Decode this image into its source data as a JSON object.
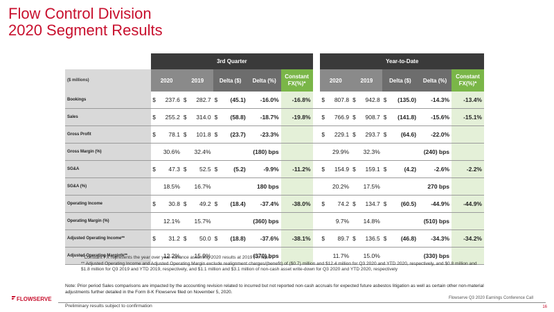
{
  "title": {
    "line1": "Flow Control Division",
    "line2": "2020 Segment Results"
  },
  "table": {
    "group_headers": {
      "q3": "3rd Quarter",
      "ytd": "Year-to-Date"
    },
    "units_label": "($ millions)",
    "col_headers": {
      "y2020": "2020",
      "y2019": "2019",
      "delta_usd": "Delta ($)",
      "delta_pct": "Delta (%)",
      "constant_fx": "Constant FX(%)*"
    },
    "rows": [
      {
        "label": "Bookings",
        "q3": [
          "$",
          "237.6",
          "$",
          "282.7",
          "$",
          "(45.1)",
          "-16.0%",
          "-16.8%"
        ],
        "ytd": [
          "$",
          "807.8",
          "$",
          "942.8",
          "$",
          "(135.0)",
          "-14.3%",
          "-13.4%"
        ]
      },
      {
        "label": "Sales",
        "q3": [
          "$",
          "255.2",
          "$",
          "314.0",
          "$",
          "(58.8)",
          "-18.7%",
          "-19.8%"
        ],
        "ytd": [
          "$",
          "766.9",
          "$",
          "908.7",
          "$",
          "(141.8)",
          "-15.6%",
          "-15.1%"
        ]
      },
      {
        "label": "Gross Profit",
        "q3": [
          "$",
          "78.1",
          "$",
          "101.8",
          "$",
          "(23.7)",
          "-23.3%",
          ""
        ],
        "ytd": [
          "$",
          "229.1",
          "$",
          "293.7",
          "$",
          "(64.6)",
          "-22.0%",
          ""
        ]
      },
      {
        "label": "Gross Margin (%)",
        "q3": [
          "",
          "30.6%",
          "",
          "32.4%",
          "",
          "",
          "(180) bps",
          ""
        ],
        "ytd": [
          "",
          "29.9%",
          "",
          "32.3%",
          "",
          "",
          "(240) bps",
          ""
        ]
      },
      {
        "label": "SG&A",
        "q3": [
          "$",
          "47.3",
          "$",
          "52.5",
          "$",
          "(5.2)",
          "-9.9%",
          "-11.2%"
        ],
        "ytd": [
          "$",
          "154.9",
          "$",
          "159.1",
          "$",
          "(4.2)",
          "-2.6%",
          "-2.2%"
        ]
      },
      {
        "label": "SG&A (%)",
        "q3": [
          "",
          "18.5%",
          "",
          "16.7%",
          "",
          "",
          "180 bps",
          ""
        ],
        "ytd": [
          "",
          "20.2%",
          "",
          "17.5%",
          "",
          "",
          "270 bps",
          ""
        ]
      },
      {
        "label": "Operating Income",
        "q3": [
          "$",
          "30.8",
          "$",
          "49.2",
          "$",
          "(18.4)",
          "-37.4%",
          "-38.0%"
        ],
        "ytd": [
          "$",
          "74.2",
          "$",
          "134.7",
          "$",
          "(60.5)",
          "-44.9%",
          "-44.9%"
        ]
      },
      {
        "label": "Operating Margin (%)",
        "q3": [
          "",
          "12.1%",
          "",
          "15.7%",
          "",
          "",
          "(360) bps",
          ""
        ],
        "ytd": [
          "",
          "9.7%",
          "",
          "14.8%",
          "",
          "",
          "(510) bps",
          ""
        ]
      },
      {
        "label": "Adjusted Operating Income**",
        "q3": [
          "$",
          "31.2",
          "$",
          "50.0",
          "$",
          "(18.8)",
          "-37.6%",
          "-38.1%"
        ],
        "ytd": [
          "$",
          "89.7",
          "$",
          "136.5",
          "$",
          "(46.8)",
          "-34.3%",
          "-34.2%"
        ]
      },
      {
        "label": "Adjusted Operating Margin%**",
        "q3": [
          "",
          "12.2%",
          "",
          "15.9%",
          "",
          "",
          "(370) bps",
          ""
        ],
        "ytd": [
          "",
          "11.7%",
          "",
          "15.0%",
          "",
          "",
          "(330) bps",
          ""
        ]
      }
    ]
  },
  "footnotes": {
    "f1": "* Constant FX represents the year over year variance assuming 2020 results at 2019 FX rates",
    "f2": "** Adjusted Operating Income and Adjusted Operating Margin exclude realignment charges/(benefit) of ($0.7) million and $12.4 million for Q3 2020 and YTD 2020, respectively, and $0.8 million and $1.8 million for Q3 2019 and YTD 2019, respectively, and $1.1 million and $3.1 million of non-cash asset write-down for Q3 2020 and YTD 2020,  respectively"
  },
  "note": "Note: Prior period Sales comparisons are impacted by the accounting revision related to incurred but not reported non-cash accruals for expected future asbestos litigation as well as certain other non-material adjustments further detailed in the Form 8-K Flowserve filed on November 5, 2020.",
  "logo_text": "FLOWSERVE",
  "preliminary": "Preliminary results subject to confirmation",
  "footer": "Flowserve Q3 2020 Earnings Conference Call",
  "page_number": "16",
  "colors": {
    "title": "#c8102e",
    "constant_fx_header": "#7ab648",
    "constant_fx_cell": "#e4f0d8",
    "dark_header": "#3a3a3a"
  }
}
